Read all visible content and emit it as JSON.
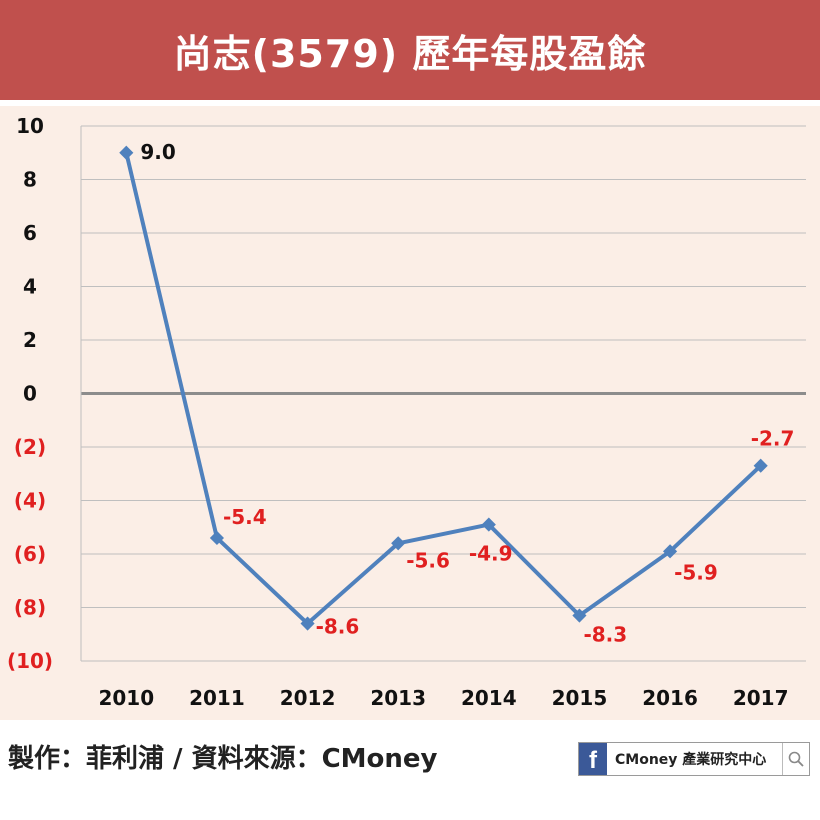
{
  "title": "尚志(3579) 歷年每股盈餘",
  "footer": {
    "credit": "製作：菲利浦 / 資料來源：CMoney",
    "badge_text": "CMoney 產業研究中心",
    "badge_logo": "f"
  },
  "colors": {
    "title_bar": "#c0504d",
    "line": "#4f81bd",
    "positive_label": "#111111",
    "negative_label": "#e02020",
    "chart_bg": "#fbeee6",
    "zero_line": "#8c8c8c"
  },
  "chart_data": {
    "type": "line",
    "title": "尚志(3579) 歷年每股盈餘",
    "categories": [
      "2010",
      "2011",
      "2012",
      "2013",
      "2014",
      "2015",
      "2016",
      "2017"
    ],
    "series": [
      {
        "values": [
          9.0,
          -5.4,
          -8.6,
          -5.6,
          -4.9,
          -8.3,
          -5.9,
          -2.7
        ]
      }
    ],
    "data_labels": [
      "9.0",
      "-5.4",
      "-8.6",
      "-5.6",
      "-4.9",
      "-8.3",
      "-5.9",
      "-2.7"
    ],
    "ylim": [
      -10,
      10
    ],
    "y_ticks": [
      10,
      8,
      6,
      4,
      2,
      0,
      -2,
      -4,
      -6,
      -8,
      -10
    ],
    "y_tick_labels": [
      "10",
      "8",
      "6",
      "4",
      "2",
      "0",
      "(2)",
      "(4)",
      "(6)",
      "(8)",
      "(10)"
    ],
    "xlabel": "",
    "ylabel": "",
    "grid": true,
    "legend": "none"
  }
}
